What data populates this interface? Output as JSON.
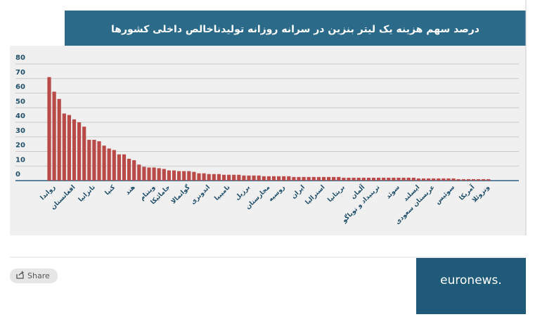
{
  "chart_data": {
    "type": "bar",
    "title": "درصد سهم هزینه یک لیتر بنزین در  سرانه روزانه تولیدناخالص داخلی کشورها",
    "categories": [
      null,
      "رواندا",
      null,
      null,
      null,
      "افغانستان",
      null,
      null,
      null,
      "تانزانیا",
      null,
      null,
      null,
      "کنیا",
      null,
      null,
      null,
      "هند",
      null,
      null,
      null,
      "ویتنام",
      null,
      null,
      "جامائیکا",
      null,
      null,
      null,
      "گواتمالا",
      null,
      null,
      null,
      "اندونزی",
      null,
      null,
      null,
      "نامیبیا",
      null,
      null,
      null,
      "برزیل",
      null,
      null,
      null,
      "مجارستان",
      null,
      null,
      "روسیه",
      null,
      null,
      null,
      "ایران",
      null,
      null,
      null,
      "استرالیا",
      null,
      null,
      null,
      "بریتانیا",
      null,
      null,
      null,
      "آلمان",
      null,
      null,
      "ترینیداد و توباگو",
      null,
      null,
      null,
      "سوئد",
      null,
      null,
      null,
      "ایسلند",
      null,
      null,
      "عربستان سعودی",
      null,
      null,
      null,
      "سوئیس",
      null,
      null,
      null,
      "آمریکا",
      null,
      null,
      "ونزوئلا"
    ],
    "values": [
      71,
      61,
      56,
      46,
      45,
      42,
      40,
      37,
      28,
      28,
      27,
      24,
      22,
      21,
      18,
      18,
      15,
      14,
      11,
      9.5,
      9,
      9,
      8.5,
      8,
      7,
      7,
      6.5,
      6.5,
      6.5,
      6,
      5,
      5,
      4.5,
      4.5,
      4.5,
      4,
      4,
      4,
      4,
      3.5,
      3.5,
      3.5,
      3.5,
      3,
      3,
      3,
      3,
      3,
      3,
      2.5,
      2.5,
      2.5,
      2.5,
      2.5,
      2.5,
      2.5,
      2.5,
      2.5,
      2.5,
      2,
      2,
      2,
      2,
      2,
      2,
      2,
      2,
      2,
      2,
      2,
      2,
      2,
      2,
      2,
      1.5,
      1.5,
      1.5,
      1.5,
      1.5,
      1.5,
      1.5,
      1.5,
      1,
      1,
      1,
      1,
      1,
      1,
      1
    ],
    "color": "#b94a48",
    "ylim": [
      0,
      80
    ],
    "yticks": [
      0,
      10,
      20,
      30,
      40,
      50,
      60,
      70,
      80
    ],
    "grid": true
  },
  "share_label": "Share",
  "brand": "euronews."
}
